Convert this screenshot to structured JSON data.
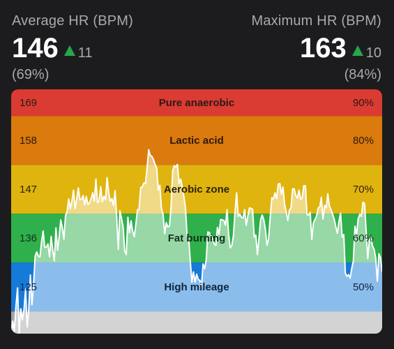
{
  "stats": {
    "average": {
      "label": "Average HR (BPM)",
      "value": "146",
      "delta": "11",
      "percent": "(69%)"
    },
    "maximum": {
      "label": "Maximum HR (BPM)",
      "value": "163",
      "delta": "10",
      "percent": "(84%)"
    },
    "delta_color": "#26a74a"
  },
  "chart_data": {
    "type": "area",
    "title": "",
    "xlabel": "",
    "ylabel": "",
    "ylim": [
      120,
      175
    ],
    "grid": false,
    "zones": [
      {
        "name": "Pure anaerobic",
        "bpm": "169",
        "percent": "90%",
        "from": 169,
        "to": 175,
        "color": "#da3b32",
        "label_color": "#2b1a14"
      },
      {
        "name": "Lactic acid",
        "bpm": "158",
        "percent": "80%",
        "from": 158,
        "to": 169,
        "color": "#db7a0d",
        "label_color": "#2b1a0a"
      },
      {
        "name": "Aerobic zone",
        "bpm": "147",
        "percent": "70%",
        "from": 147,
        "to": 158,
        "color": "#e0b40e",
        "label_color": "#2b2208"
      },
      {
        "name": "Fat burning",
        "bpm": "136",
        "percent": "60%",
        "from": 136,
        "to": 147,
        "color": "#2fb04c",
        "label_color": "#15301a"
      },
      {
        "name": "High mileage",
        "bpm": "125",
        "percent": "50%",
        "from": 125,
        "to": 136,
        "color": "#167ad8",
        "label_color": "#0e2540"
      }
    ],
    "below_color": "#a6a6a6",
    "area_fill": "rgba(255,255,255,0.5)",
    "line_color": "#ffffff",
    "series": [
      {
        "values": [
          120.3,
          122.8,
          120.6,
          126.2,
          130.3,
          120.1,
          125.6,
          123.1,
          125.3,
          130.0,
          121.5,
          125.3,
          133.2,
          126.5,
          130.9,
          137.5,
          138.4,
          137.4,
          137.3,
          140.7,
          143.1,
          139.4,
          139.5,
          140.2,
          137.3,
          141.9,
          138.8,
          136.4,
          143.8,
          138.8,
          141.7,
          145.6,
          143.9,
          141.3,
          146.6,
          147.5,
          150.3,
          148.1,
          149.9,
          152.3,
          148.2,
          150.3,
          152.8,
          150.2,
          150.2,
          151.1,
          149.0,
          150.9,
          149.1,
          149.4,
          150.4,
          151.7,
          149.8,
          154.8,
          149.5,
          149.8,
          153.1,
          149.7,
          150.9,
          150.2,
          155.1,
          151.7,
          149.8,
          150.4,
          148.8,
          152.2,
          146.3,
          139.0,
          147.7,
          146.0,
          144.1,
          138.6,
          137.8,
          146.2,
          142.7,
          145.4,
          143.0,
          141.8,
          144.7,
          147.9,
          148.0,
          152.9,
          153.0,
          153.9,
          153.8,
          157.3,
          161.4,
          160.1,
          159.9,
          159.2,
          158.1,
          157.3,
          152.3,
          153.4,
          148.1,
          146.9,
          142.5,
          145.0,
          144.0,
          144.2,
          148.6,
          156.6,
          157.8,
          157.5,
          158.1,
          153.8,
          154.8,
          153.0,
          150.9,
          148.4,
          142.1,
          141.6,
          136.5,
          131.6,
          133.9,
          131.6,
          133.4,
          132.2,
          132.0,
          130.5,
          135.7,
          134.6,
          136.6,
          142.9,
          142.7,
          142.1,
          141.3,
          140.2,
          139.9,
          143.9,
          142.4,
          145.7,
          145.6,
          145.5,
          144.4,
          147.9,
          142.3,
          139.3,
          139.8,
          142.1,
          147.4,
          151.7,
          146.4,
          146.9,
          146.2,
          146.0,
          147.9,
          144.4,
          146.5,
          148.3,
          148.2,
          148.0,
          141.7,
          142.2,
          137.8,
          141.6,
          145.6,
          146.7,
          145.6,
          143.4,
          139.9,
          141.4,
          146.2,
          150.6,
          150.3,
          151.7,
          150.4,
          153.6,
          153.8,
          151.4,
          153.0,
          149.1,
          147.4,
          145.5,
          147.8,
          148.3,
          152.6,
          152.6,
          151.1,
          150.5,
          152.3,
          150.2,
          150.6,
          153.3,
          153.3,
          146.8,
          146.7,
          147.3,
          141.2,
          144.9,
          145.7,
          146.5,
          148.3,
          148.5,
          150.7,
          145.8,
          148.9,
          148.3,
          151.5,
          148.8,
          147.9,
          146.9,
          145.8,
          144.1,
          142.6,
          145.3,
          147.1,
          141.7,
          142.3,
          133.6,
          132.9,
          133.3,
          132.5,
          134.7,
          136.4,
          144.2,
          142.2,
          145.8,
          146.9,
          146.4,
          149.6,
          149.3,
          143.1,
          136.9,
          141.1,
          141.7,
          139.7,
          139.0,
          136.9,
          131.8,
          138.0,
          137.1,
          133.9
        ]
      }
    ]
  }
}
